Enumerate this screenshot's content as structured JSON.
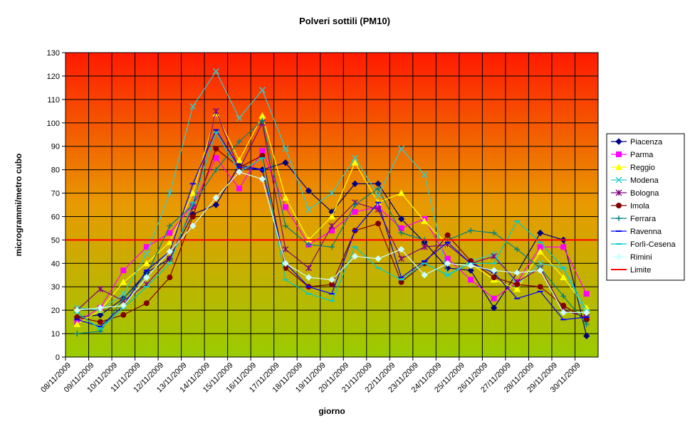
{
  "chart_data": {
    "type": "line",
    "title": "Polveri sottili (PM10)",
    "xlabel": "giorno",
    "ylabel": "microgrammi/metro cubo",
    "ylim": [
      0,
      130
    ],
    "yticks": [
      0,
      10,
      20,
      30,
      40,
      50,
      60,
      70,
      80,
      90,
      100,
      110,
      120,
      130
    ],
    "x_tick_labels": [
      "08/11/2009",
      "09/11/2009",
      "10/11/2009",
      "11/11/2009",
      "12/11/2009",
      "13/11/2009",
      "14/11/2009",
      "15/11/2009",
      "16/11/2009",
      "17/11/2009",
      "18/11/2009",
      "19/11/2009",
      "20/11/2009",
      "21/11/2009",
      "22/11/2009",
      "23/11/2009",
      "24/11/2009",
      "25/11/2009",
      "26/11/2009",
      "27/11/2009",
      "28/11/2009",
      "29/11/2009",
      "30/11/2009"
    ],
    "grid": true,
    "legend_position": "right",
    "background": "gradient red (top) to green (bottom)",
    "series": [
      {
        "name": "Piacenza",
        "color": "#000080",
        "marker": "diamond",
        "values": [
          17,
          18,
          25,
          36,
          42,
          61,
          65,
          82,
          80,
          83,
          71,
          62,
          74,
          74,
          59,
          49,
          38,
          37,
          21,
          36,
          53,
          50,
          9
        ]
      },
      {
        "name": "Parma",
        "color": "#ff00ff",
        "marker": "square",
        "values": [
          15,
          21,
          37,
          47,
          53,
          65,
          85,
          72,
          88,
          64,
          48,
          54,
          62,
          64,
          55,
          59,
          42,
          33,
          25,
          32,
          47,
          47,
          27
        ]
      },
      {
        "name": "Reggio",
        "color": "#ffff00",
        "marker": "triangle",
        "values": [
          14,
          20,
          32,
          40,
          49,
          70,
          104,
          84,
          103,
          68,
          50,
          60,
          83,
          66,
          70,
          58,
          48,
          40,
          33,
          29,
          45,
          34,
          21
        ]
      },
      {
        "name": "Modena",
        "color": "#33cccc",
        "marker": "x",
        "values": [
          21,
          20,
          27,
          44,
          70,
          107,
          122,
          102,
          114,
          89,
          63,
          70,
          85,
          69,
          89,
          78,
          35,
          41,
          44,
          31,
          40,
          38,
          18
        ]
      },
      {
        "name": "Bologna",
        "color": "#800080",
        "marker": "star",
        "values": [
          20,
          29,
          24,
          31,
          42,
          64,
          105,
          80,
          100,
          46,
          38,
          56,
          66,
          63,
          42,
          47,
          48,
          40,
          43,
          32,
          38,
          20,
          17
        ]
      },
      {
        "name": "Imola",
        "color": "#800000",
        "marker": "circle",
        "values": [
          17,
          15,
          18,
          23,
          34,
          60,
          89,
          81,
          86,
          38,
          30,
          31,
          54,
          57,
          32,
          40,
          52,
          41,
          34,
          31,
          30,
          22,
          16
        ]
      },
      {
        "name": "Ferrara",
        "color": "#008080",
        "marker": "plus",
        "values": [
          10,
          11,
          25,
          35,
          56,
          65,
          80,
          92,
          101,
          56,
          48,
          47,
          65,
          72,
          53,
          50,
          50,
          54,
          53,
          46,
          38,
          26,
          14
        ]
      },
      {
        "name": "Ravenna",
        "color": "#0000ff",
        "marker": "dash",
        "values": [
          16,
          13,
          22,
          37,
          45,
          74,
          97,
          81,
          80,
          40,
          30,
          27,
          54,
          66,
          34,
          41,
          49,
          40,
          36,
          25,
          28,
          16,
          17
        ]
      },
      {
        "name": "Forlì-Cesena",
        "color": "#00cccc",
        "marker": "dash",
        "values": [
          19,
          12,
          21,
          30,
          40,
          66,
          96,
          79,
          85,
          33,
          27,
          24,
          47,
          38,
          33,
          40,
          35,
          40,
          40,
          58,
          49,
          38,
          20
        ]
      },
      {
        "name": "Rimini",
        "color": "#ccffff",
        "marker": "diamond",
        "values": [
          20,
          21,
          22,
          34,
          45,
          56,
          68,
          79,
          76,
          40,
          34,
          33,
          43,
          42,
          46,
          35,
          40,
          39,
          37,
          36,
          37,
          19,
          19
        ]
      },
      {
        "name": "Limite",
        "color": "#ff0000",
        "marker": "none",
        "values": [
          50,
          50,
          50,
          50,
          50,
          50,
          50,
          50,
          50,
          50,
          50,
          50,
          50,
          50,
          50,
          50,
          50,
          50,
          50,
          50,
          50,
          50,
          50
        ]
      }
    ]
  }
}
